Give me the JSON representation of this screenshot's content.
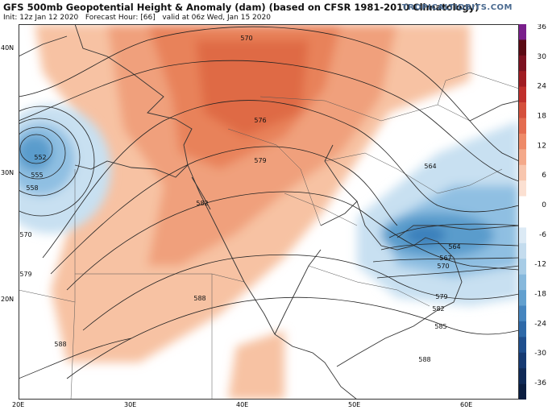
{
  "header": {
    "title": "GFS 500mb Geopotential Height & Anomaly (dam) (based on CFSR 1981-2010 Climatology)",
    "init": "Init: 12z Jan 12 2020",
    "forecast_hour": "Forecast Hour: [66]",
    "valid": "valid at 06z Wed, Jan 15 2020",
    "brand": "TROPICALTIDBITS.COM"
  },
  "axes": {
    "lon_labels": [
      "20E",
      "30E",
      "40E",
      "50E",
      "60E"
    ],
    "lat_labels": [
      "40N",
      "30N",
      "20N"
    ]
  },
  "colorbar": {
    "labels": [
      "36",
      "30",
      "24",
      "18",
      "12",
      "6",
      "0",
      "-6",
      "-12",
      "-18",
      "-24",
      "-30",
      "-36"
    ]
  },
  "contours": {
    "labels": [
      "570",
      "576",
      "579",
      "582",
      "588",
      "552",
      "555",
      "558",
      "570",
      "579",
      "588",
      "564",
      "564",
      "567",
      "570",
      "579",
      "582",
      "585",
      "588"
    ]
  },
  "colors": {
    "positive_anomaly": "#e8825a",
    "negative_anomaly": "#5a9ccc",
    "contour": "#222222",
    "border": "#333333"
  }
}
